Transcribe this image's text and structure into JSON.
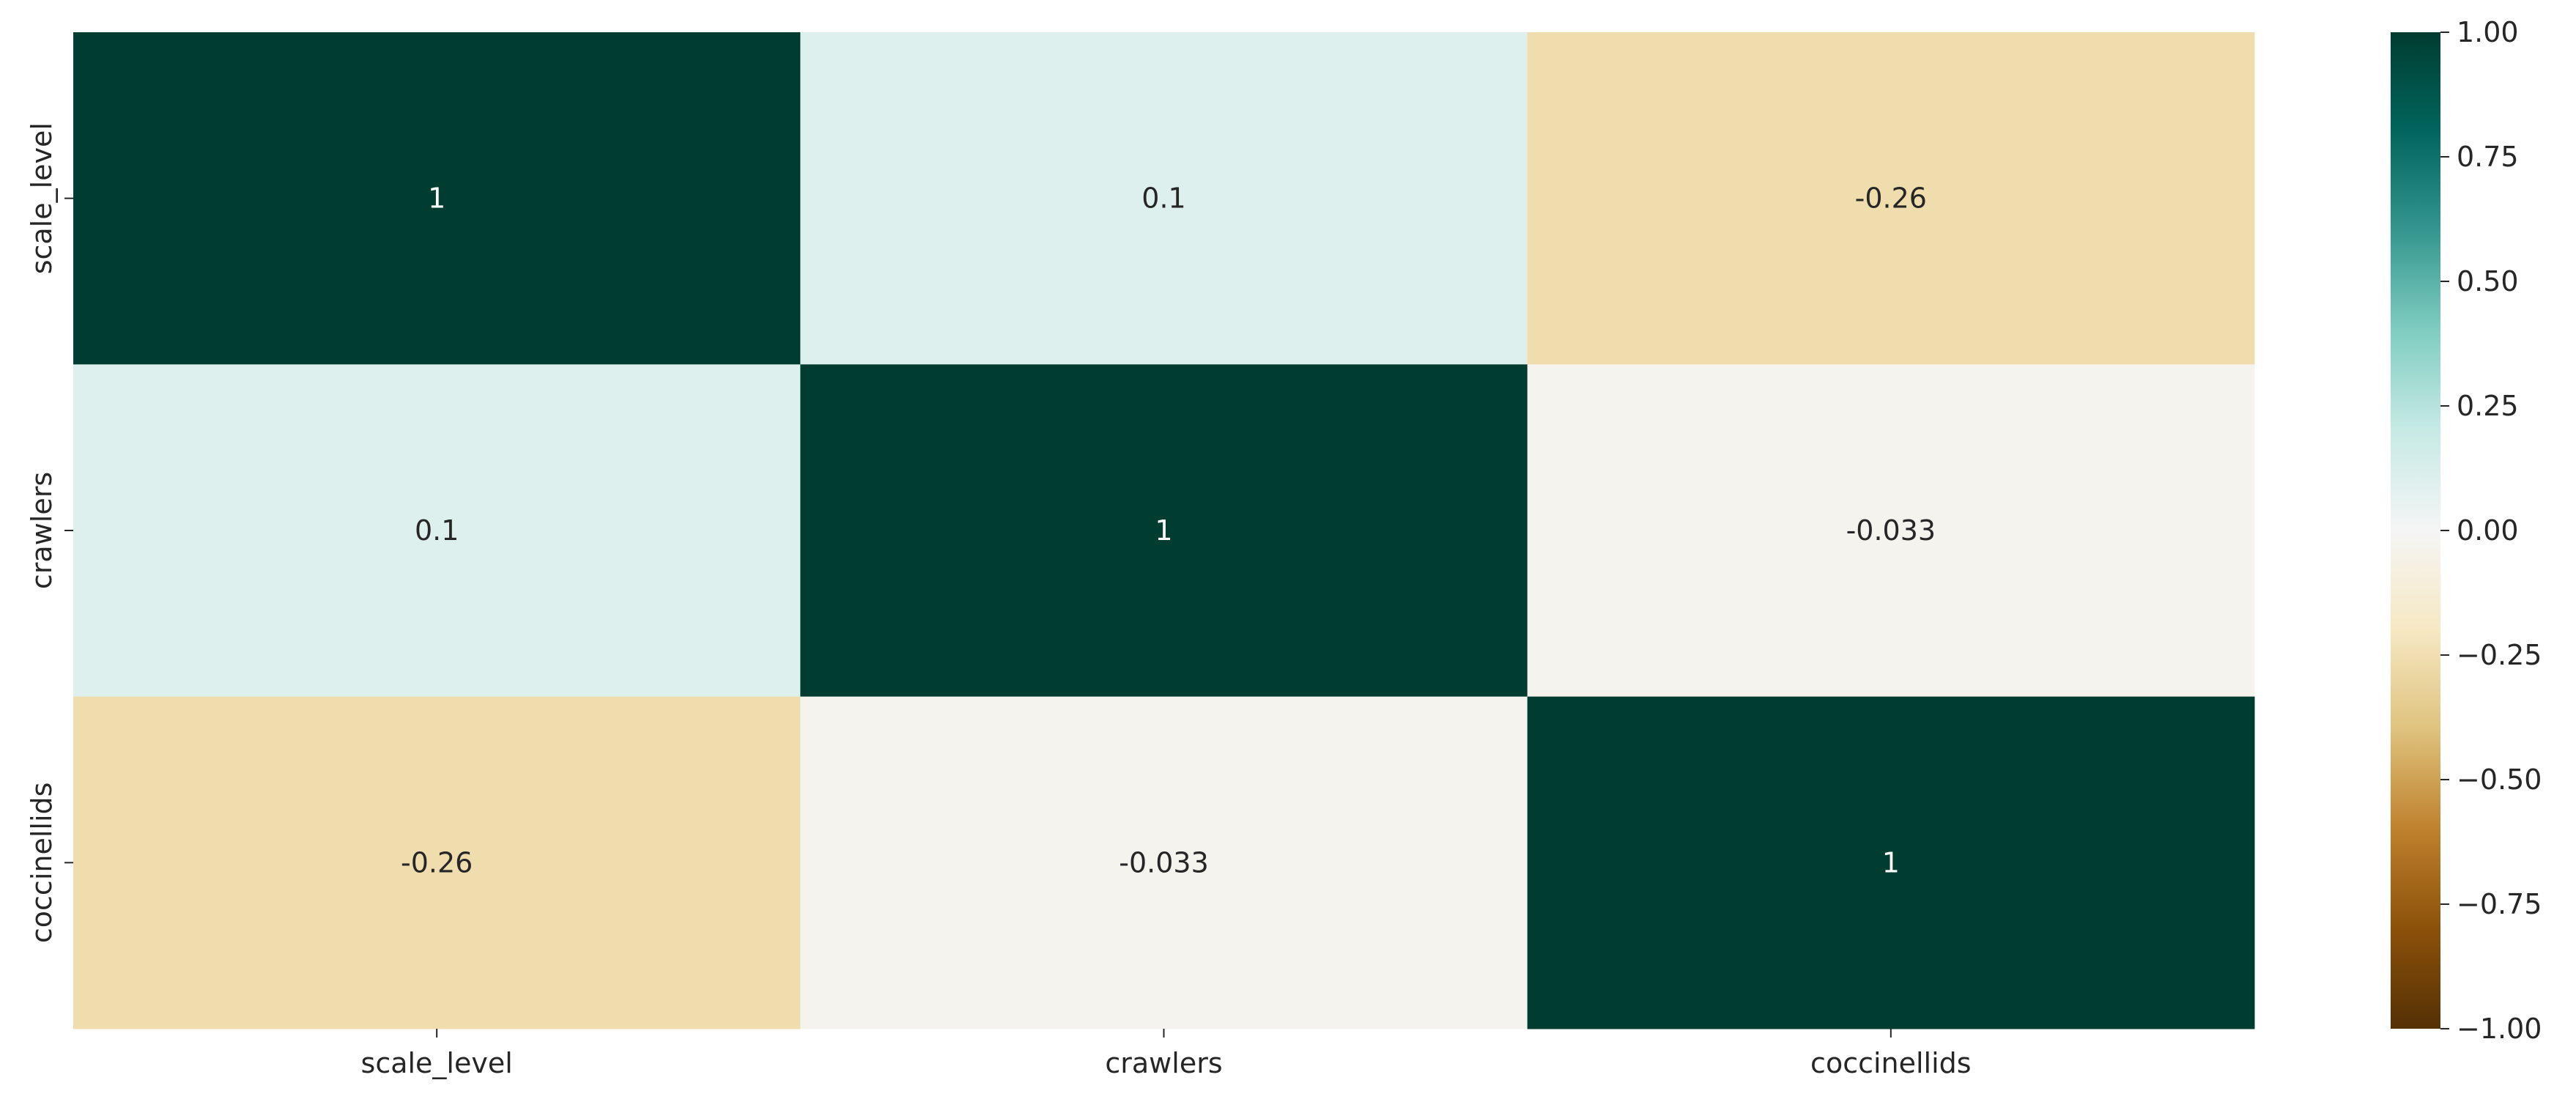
{
  "chart_data": {
    "type": "heatmap",
    "title": "",
    "xlabel": "",
    "ylabel": "",
    "x_categories": [
      "scale_level",
      "crawlers",
      "coccinellids"
    ],
    "y_categories": [
      "scale_level",
      "crawlers",
      "coccinellids"
    ],
    "matrix": [
      [
        1,
        0.1,
        -0.26
      ],
      [
        0.1,
        1,
        -0.033
      ],
      [
        -0.26,
        -0.033,
        1
      ]
    ],
    "annotations": [
      [
        "1",
        "0.1",
        "-0.26"
      ],
      [
        "0.1",
        "1",
        "-0.033"
      ],
      [
        "-0.26",
        "-0.033",
        "1"
      ]
    ],
    "colormap": "BrBG",
    "colormap_stops": [
      "#543005",
      "#8c510a",
      "#bf812d",
      "#dfc27d",
      "#f6e8c3",
      "#f5f5f5",
      "#c7eae5",
      "#80cdc1",
      "#35978f",
      "#01665e",
      "#003c30"
    ],
    "vmin": -1,
    "vmax": 1,
    "colorbar": {
      "ticks": [
        1,
        0.75,
        0.5,
        0.25,
        0,
        -0.25,
        -0.5,
        -0.75,
        -1
      ],
      "tick_labels": [
        "1.00",
        "0.75",
        "0.50",
        "0.25",
        "0.00",
        "−0.25",
        "−0.50",
        "−0.75",
        "−1.00"
      ]
    },
    "grid": false,
    "legend": "colorbar-right"
  }
}
